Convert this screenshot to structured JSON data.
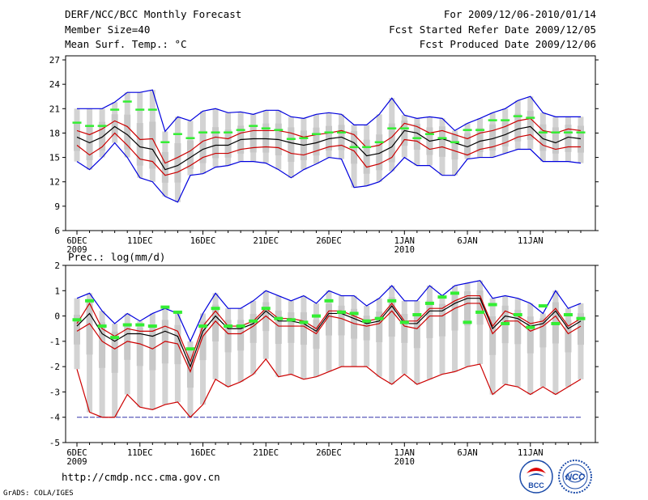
{
  "header": {
    "title": "DERF/NCC/BCC Monthly Forecast",
    "member_size": "Member Size=40",
    "variable": "Mean Surf. Temp.: °C",
    "period": "For 2009/12/06-2010/01/14",
    "refer_date": "Fcst Started Refer Date 2009/12/05",
    "produced_date": "Fcst Produced Date 2009/12/06"
  },
  "footer": {
    "url": "http://cmdp.ncc.cma.gov.cn",
    "credit": "GrADS: COLA/IGES",
    "logo_left_text": "BCC",
    "logo_right_text": "NCC"
  },
  "colors": {
    "spread": "#d3d3d3",
    "band": "#c8c8c8",
    "ensemble_mean": "#000000",
    "std_lines": "#cc0000",
    "extremes": "#0000dd",
    "observed": "#33ee33",
    "dashed_floor": "#3333aa"
  },
  "chart_data": [
    {
      "type": "line",
      "title": "Mean Surf. Temp.: °C",
      "x_tick_labels": [
        "6DEC",
        "11DEC",
        "16DEC",
        "21DEC",
        "26DEC",
        "1JAN",
        "6JAN",
        "11JAN"
      ],
      "x_tick_day_index": [
        0,
        5,
        10,
        15,
        20,
        26,
        31,
        36
      ],
      "x_year_labels": [
        {
          "day_index": 0,
          "label": "2009"
        },
        {
          "day_index": 26,
          "label": "2010"
        }
      ],
      "ylim": [
        6,
        27.5
      ],
      "yticks": [
        6,
        9,
        12,
        15,
        18,
        21,
        24,
        27
      ],
      "series": [
        {
          "name": "max",
          "values": [
            21,
            21,
            21,
            21.8,
            23,
            23,
            23.3,
            18.2,
            20,
            19.5,
            20.7,
            21,
            20.5,
            20.6,
            20.3,
            20.8,
            20.8,
            20,
            19.8,
            20.3,
            20.5,
            20.3,
            19,
            19,
            20.3,
            22.3,
            20.2,
            19.8,
            20,
            19.8,
            18.3,
            19.2,
            19.8,
            20.5,
            21,
            22,
            22.5,
            20.5,
            20,
            20,
            20
          ]
        },
        {
          "name": "mean_plus_std",
          "values": [
            18.3,
            17.8,
            18.5,
            19.5,
            18.8,
            17.2,
            17.3,
            14.3,
            15,
            15.8,
            17,
            17.5,
            17.3,
            18,
            18.3,
            18.3,
            18.3,
            18,
            17.5,
            17.8,
            18,
            18.3,
            17.8,
            16.2,
            16.5,
            17.5,
            19.2,
            18.8,
            18,
            18.3,
            17.8,
            17.3,
            18,
            18.3,
            18.8,
            19.5,
            19.8,
            18.3,
            18,
            18.5,
            18.3
          ]
        },
        {
          "name": "mean",
          "values": [
            17.5,
            16.8,
            17.5,
            18.8,
            17.8,
            16.3,
            16,
            13.5,
            14,
            15,
            16,
            16.5,
            16.5,
            17.2,
            17.3,
            17.3,
            17.2,
            16.8,
            16.5,
            16.8,
            17.3,
            17.5,
            16.8,
            15.2,
            15.5,
            16.3,
            18.3,
            18,
            17,
            17.3,
            16.8,
            16.3,
            17,
            17.3,
            17.8,
            18.5,
            18.8,
            17.3,
            16.8,
            17.5,
            17.3
          ]
        },
        {
          "name": "mean_minus_std",
          "values": [
            16.5,
            15.3,
            16.3,
            18,
            16.5,
            14.8,
            14.5,
            12.8,
            13.2,
            14,
            15,
            15.5,
            15.5,
            16,
            16.2,
            16.3,
            16.2,
            15.5,
            15.3,
            15.8,
            16.3,
            16.5,
            15.8,
            13.8,
            14.2,
            15,
            17.2,
            17,
            16,
            16.3,
            15.8,
            15.3,
            16,
            16.3,
            16.8,
            17.5,
            17.8,
            16.5,
            16,
            16.3,
            16.3
          ]
        },
        {
          "name": "min",
          "values": [
            14.5,
            13.5,
            15,
            16.8,
            15,
            12.5,
            12,
            10.2,
            9.5,
            12.8,
            13,
            13.8,
            14,
            14.5,
            14.5,
            14.3,
            13.5,
            12.5,
            13.5,
            14.2,
            15,
            14.8,
            11.3,
            11.5,
            12,
            13.3,
            15,
            14,
            14,
            12.8,
            12.8,
            14.8,
            15,
            15,
            15.5,
            16,
            16,
            14.5,
            14.5,
            14.5,
            14.3
          ]
        },
        {
          "name": "observed",
          "values": [
            19.2,
            18.8,
            18.8,
            20.8,
            21.8,
            20.8,
            20.8,
            16.8,
            17.8,
            17.3,
            18,
            18,
            18,
            18.3,
            18.8,
            18.5,
            18.3,
            17.2,
            17.3,
            17.8,
            18,
            18,
            16.2,
            16.2,
            16.8,
            18.5,
            18.5,
            17.3,
            17.8,
            17.3,
            16.8,
            18.3,
            18.3,
            19.5,
            19.5,
            20,
            19.8,
            18,
            18,
            18,
            18
          ]
        }
      ]
    },
    {
      "type": "line",
      "title": "Prec.: log(mm/d)",
      "x_tick_labels": [
        "6DEC",
        "11DEC",
        "16DEC",
        "21DEC",
        "26DEC",
        "1JAN",
        "6JAN",
        "11JAN"
      ],
      "x_tick_day_index": [
        0,
        5,
        10,
        15,
        20,
        26,
        31,
        36
      ],
      "x_year_labels": [
        {
          "day_index": 0,
          "label": "2009"
        },
        {
          "day_index": 26,
          "label": "2010"
        }
      ],
      "ylim": [
        -5,
        2
      ],
      "yticks": [
        -5,
        -4,
        -3,
        -2,
        -1,
        0,
        1,
        2
      ],
      "series": [
        {
          "name": "max",
          "values": [
            0.7,
            0.9,
            0.2,
            -0.3,
            0.1,
            -0.2,
            0.1,
            0.3,
            0.1,
            -1.0,
            0.1,
            0.9,
            0.3,
            0.3,
            0.6,
            1.0,
            0.8,
            0.6,
            0.8,
            0.5,
            1.0,
            0.8,
            0.8,
            0.4,
            0.7,
            1.2,
            0.6,
            0.6,
            1.2,
            0.8,
            1.2,
            1.3,
            1.4,
            0.7,
            0.8,
            0.7,
            0.5,
            0.1,
            1.0,
            0.3,
            0.5
          ]
        },
        {
          "name": "mean_plus_std",
          "values": [
            -0.3,
            0.5,
            -0.5,
            -0.8,
            -0.5,
            -0.6,
            -0.6,
            -0.4,
            -0.6,
            -1.8,
            -0.4,
            0.2,
            -0.4,
            -0.4,
            -0.2,
            0.3,
            -0.1,
            -0.1,
            -0.2,
            -0.5,
            0.2,
            0.2,
            0.0,
            -0.2,
            -0.1,
            0.5,
            -0.2,
            -0.2,
            0.3,
            0.3,
            0.6,
            0.8,
            0.8,
            -0.4,
            0.2,
            0.0,
            -0.3,
            -0.2,
            0.3,
            -0.4,
            -0.1
          ]
        },
        {
          "name": "mean",
          "values": [
            -0.4,
            0.1,
            -0.7,
            -1.0,
            -0.7,
            -0.7,
            -0.8,
            -0.6,
            -0.8,
            -2.0,
            -0.6,
            0.0,
            -0.5,
            -0.5,
            -0.3,
            0.2,
            -0.2,
            -0.2,
            -0.3,
            -0.6,
            0.1,
            0.1,
            -0.1,
            -0.3,
            -0.2,
            0.4,
            -0.3,
            -0.3,
            0.2,
            0.2,
            0.5,
            0.7,
            0.7,
            -0.5,
            0.0,
            -0.1,
            -0.4,
            -0.3,
            0.2,
            -0.5,
            -0.2
          ]
        },
        {
          "name": "mean_minus_std",
          "values": [
            -0.6,
            -0.3,
            -1.0,
            -1.3,
            -1.0,
            -1.1,
            -1.3,
            -1.0,
            -1.1,
            -2.2,
            -0.8,
            -0.2,
            -0.7,
            -0.7,
            -0.4,
            0.0,
            -0.4,
            -0.4,
            -0.4,
            -0.7,
            0.0,
            -0.1,
            -0.3,
            -0.4,
            -0.3,
            0.2,
            -0.4,
            -0.5,
            0.0,
            0.0,
            0.3,
            0.5,
            0.5,
            -0.7,
            -0.2,
            -0.2,
            -0.6,
            -0.4,
            0.0,
            -0.7,
            -0.4
          ]
        },
        {
          "name": "min",
          "values": [
            -2.1,
            -3.8,
            -4.0,
            -4.0,
            -3.1,
            -3.6,
            -3.7,
            -3.5,
            -3.4,
            -4.0,
            -3.5,
            -2.5,
            -2.8,
            -2.6,
            -2.3,
            -1.7,
            -2.4,
            -2.3,
            -2.5,
            -2.4,
            -2.2,
            -2.0,
            -2.0,
            -2.0,
            -2.4,
            -2.7,
            -2.3,
            -2.7,
            -2.5,
            -2.3,
            -2.2,
            -2.0,
            -1.9,
            -3.1,
            -2.7,
            -2.8,
            -3.1,
            -2.8,
            -3.1,
            -2.8,
            -2.5
          ]
        },
        {
          "name": "observed",
          "values": [
            -0.15,
            0.6,
            -0.4,
            -0.85,
            -0.35,
            -0.35,
            -0.4,
            0.35,
            0.15,
            -1.3,
            -0.4,
            0.3,
            -0.4,
            -0.4,
            -0.2,
            0.3,
            -0.1,
            -0.15,
            -0.25,
            0.0,
            0.6,
            0.15,
            0.1,
            -0.2,
            -0.1,
            0.6,
            -0.25,
            0.05,
            0.5,
            0.75,
            0.9,
            -0.25,
            0.15,
            0.45,
            -0.3,
            0.05,
            -0.45,
            0.4,
            -0.3,
            0.05,
            -0.1
          ]
        },
        {
          "name": "lower_floor",
          "values": [
            -4,
            -4,
            -4,
            -4,
            -4,
            -4,
            -4,
            -4,
            -4,
            -4,
            -4,
            -4,
            -4,
            -4,
            -4,
            -4,
            -4,
            -4,
            -4,
            -4,
            -4,
            -4,
            -4,
            -4,
            -4,
            -4,
            -4,
            -4,
            -4,
            -4,
            -4,
            -4,
            -4,
            -4,
            -4,
            -4,
            -4,
            -4,
            -4,
            -4,
            -4
          ]
        }
      ]
    }
  ]
}
